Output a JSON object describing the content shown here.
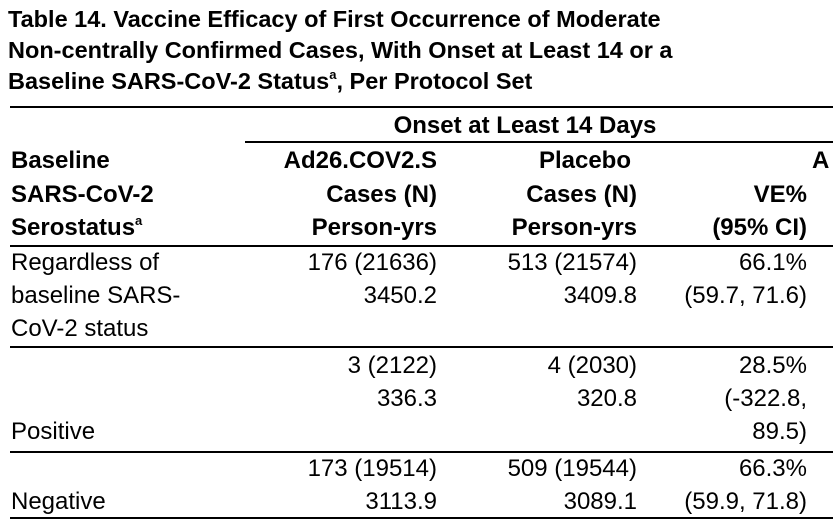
{
  "table": {
    "title_lines": [
      "Table 14. Vaccine Efficacy of First Occurrence of Moderate",
      "Non-centrally Confirmed Cases, With Onset at Least 14 or a",
      "Baseline SARS-CoV-2 Status"
    ],
    "title_sup": "a",
    "title_tail": ", Per Protocol Set",
    "span_header": "Onset at Least 14 Days",
    "columns": {
      "stub": [
        "Baseline",
        "SARS-CoV-2",
        "Serostatus"
      ],
      "stub_sup": "a",
      "vaccine": [
        "Ad26.COV2.S",
        "Cases (N)",
        "Person-yrs"
      ],
      "placebo": [
        "Placebo",
        "Cases (N)",
        "Person-yrs"
      ],
      "ve": [
        "VE%",
        "(95% CI)"
      ],
      "cutoff": "A"
    },
    "rows": [
      {
        "label": [
          "Regardless of",
          "baseline SARS-",
          "CoV-2 status"
        ],
        "vaccine": [
          "176 (21636)",
          "3450.2"
        ],
        "placebo": [
          "513 (21574)",
          "3409.8"
        ],
        "ve": [
          "66.1%",
          "(59.7, 71.6)"
        ]
      },
      {
        "label": [
          "Positive"
        ],
        "vaccine": [
          "3 (2122)",
          "336.3"
        ],
        "placebo": [
          "4 (2030)",
          "320.8"
        ],
        "ve": [
          "28.5%",
          "(-322.8,",
          "89.5)"
        ]
      },
      {
        "label": [
          "Negative"
        ],
        "vaccine": [
          "173 (19514)",
          "3113.9"
        ],
        "placebo": [
          "509 (19544)",
          "3089.1"
        ],
        "ve": [
          "66.3%",
          "(59.9, 71.8)"
        ]
      }
    ]
  }
}
